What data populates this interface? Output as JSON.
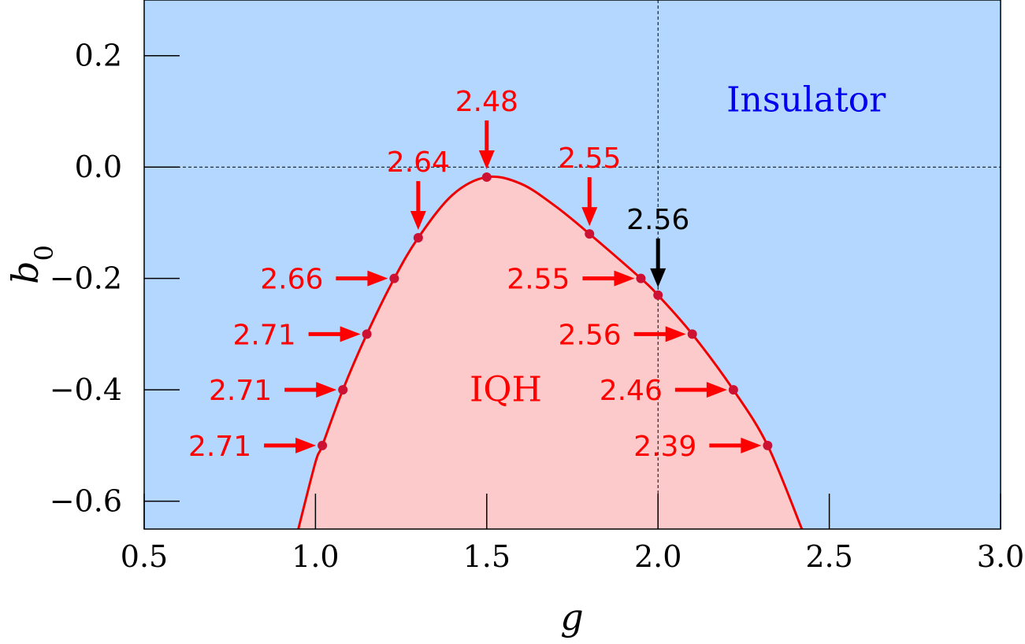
{
  "chart_data": {
    "type": "area",
    "xlabel": "g",
    "ylabel": "b0",
    "ylabel_base": "b",
    "ylabel_sub": "0",
    "xlim": [
      0.5,
      3.0
    ],
    "ylim": [
      -0.65,
      0.3
    ],
    "xticks": [
      {
        "value": 0.5,
        "label": "0.5"
      },
      {
        "value": 1.0,
        "label": "1.0"
      },
      {
        "value": 1.5,
        "label": "1.5"
      },
      {
        "value": 2.0,
        "label": "2.0"
      },
      {
        "value": 2.5,
        "label": "2.5"
      },
      {
        "value": 3.0,
        "label": "3.0"
      }
    ],
    "yticks": [
      {
        "value": 0.2,
        "label": "0.2"
      },
      {
        "value": 0.0,
        "label": "0.0"
      },
      {
        "value": -0.2,
        "label": "−0.2"
      },
      {
        "value": -0.4,
        "label": "−0.4"
      },
      {
        "value": -0.6,
        "label": "−0.6"
      }
    ],
    "reference_lines": {
      "h": 0.0,
      "v": 2.0
    },
    "regions": [
      {
        "label": "Insulator",
        "color": "#0000ee",
        "fill": "#b3d7ff",
        "label_at": [
          2.2,
          0.1
        ]
      },
      {
        "label": "IQH",
        "color": "#ff0000",
        "fill": "#fccaca",
        "label_at": [
          1.45,
          -0.42
        ]
      }
    ],
    "boundary": {
      "color": "#ee0000",
      "points": [
        [
          0.95,
          -0.65
        ],
        [
          1.0,
          -0.53
        ],
        [
          1.02,
          -0.5
        ],
        [
          1.08,
          -0.4
        ],
        [
          1.15,
          -0.3
        ],
        [
          1.23,
          -0.2
        ],
        [
          1.3,
          -0.127
        ],
        [
          1.4,
          -0.05
        ],
        [
          1.5,
          -0.018
        ],
        [
          1.6,
          -0.03
        ],
        [
          1.7,
          -0.07
        ],
        [
          1.8,
          -0.12
        ],
        [
          1.95,
          -0.2
        ],
        [
          2.0,
          -0.23
        ],
        [
          2.1,
          -0.3
        ],
        [
          2.22,
          -0.4
        ],
        [
          2.32,
          -0.5
        ],
        [
          2.42,
          -0.65
        ]
      ]
    },
    "annotations": [
      {
        "x": 1.5,
        "y": -0.018,
        "label": "2.48",
        "dir": "down",
        "color": "#ff0000"
      },
      {
        "x": 1.3,
        "y": -0.127,
        "label": "2.64",
        "dir": "down",
        "color": "#ff0000"
      },
      {
        "x": 1.8,
        "y": -0.12,
        "label": "2.55",
        "dir": "down",
        "color": "#ff0000"
      },
      {
        "x": 2.0,
        "y": -0.23,
        "label": "2.56",
        "dir": "down",
        "color": "#000000"
      },
      {
        "x": 1.23,
        "y": -0.2,
        "label": "2.66",
        "dir": "right",
        "color": "#ff0000"
      },
      {
        "x": 1.15,
        "y": -0.3,
        "label": "2.71",
        "dir": "right",
        "color": "#ff0000"
      },
      {
        "x": 1.08,
        "y": -0.4,
        "label": "2.71",
        "dir": "right",
        "color": "#ff0000"
      },
      {
        "x": 1.02,
        "y": -0.5,
        "label": "2.71",
        "dir": "right",
        "color": "#ff0000"
      },
      {
        "x": 1.95,
        "y": -0.2,
        "label": "2.55",
        "dir": "right",
        "color": "#ff0000"
      },
      {
        "x": 2.1,
        "y": -0.3,
        "label": "2.56",
        "dir": "right",
        "color": "#ff0000"
      },
      {
        "x": 2.22,
        "y": -0.4,
        "label": "2.46",
        "dir": "right",
        "color": "#ff0000"
      },
      {
        "x": 2.32,
        "y": -0.5,
        "label": "2.39",
        "dir": "right",
        "color": "#ff0000"
      }
    ]
  }
}
